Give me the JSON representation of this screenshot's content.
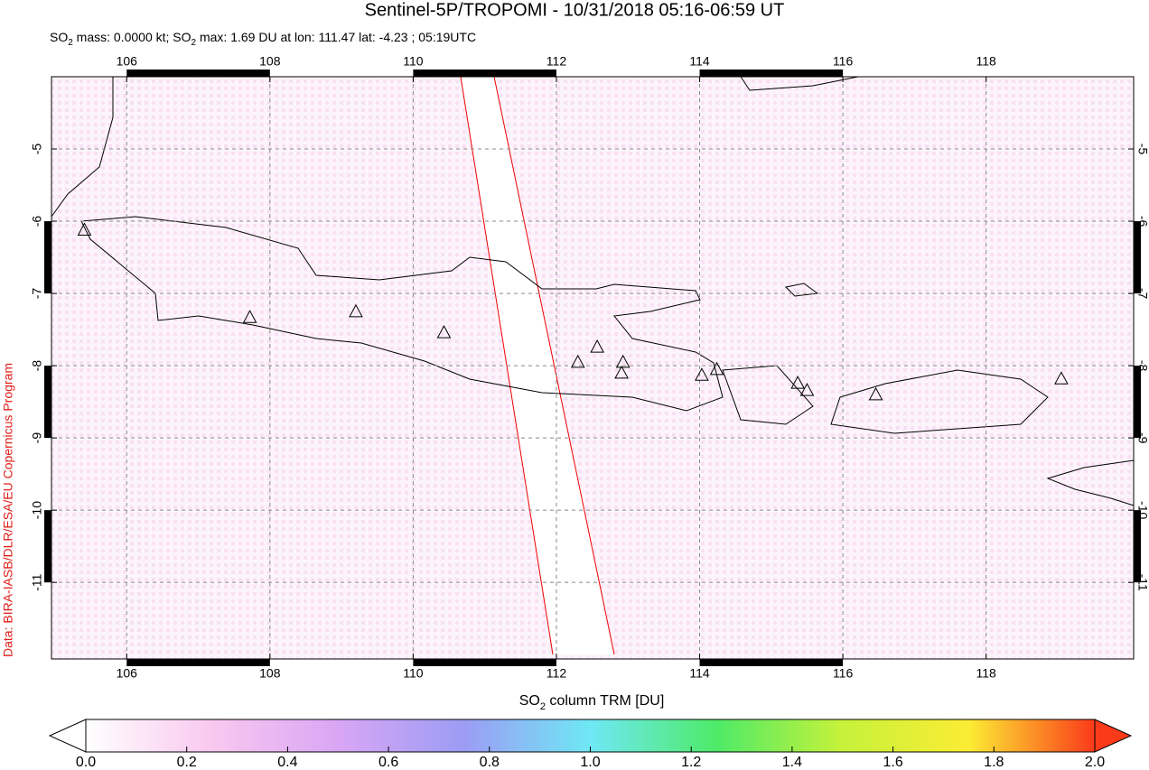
{
  "chart_data": {
    "type": "map",
    "title": "Sentinel-5P/TROPOMI - 10/31/2018 05:16-06:59 UT",
    "subtitle_parts": [
      "SO",
      "2",
      " mass: 0.0000 kt; SO",
      "2",
      " max: 1.69 DU at lon: 111.47 lat: -4.23 ; 05:19UTC"
    ],
    "credit": "Data: BIRA-IASB/DLR/ESA/EU Copernicus Program",
    "xlim": [
      104.95,
      120.06
    ],
    "ylim": [
      -12.06,
      -4.0
    ],
    "xticks": [
      106,
      108,
      110,
      112,
      114,
      116,
      118
    ],
    "yticks": [
      -5,
      -6,
      -7,
      -8,
      -9,
      -10,
      -11
    ],
    "grid": true,
    "volcanoes": {
      "x": [
        105.41,
        107.72,
        109.2,
        110.43,
        112.3,
        112.57,
        112.93,
        112.91,
        114.03,
        114.24,
        115.37,
        115.5,
        116.46,
        119.05
      ],
      "y": [
        -6.13,
        -7.34,
        -7.26,
        -7.55,
        -7.96,
        -7.75,
        -7.96,
        -8.11,
        -8.14,
        -8.06,
        -8.25,
        -8.35,
        -8.41,
        -8.19
      ]
    },
    "colorbar": {
      "label_parts": [
        "SO",
        "2",
        " column TRM [DU]"
      ],
      "lim": [
        0,
        2
      ],
      "ticks": [
        {
          "value": 0,
          "label": "0.0"
        },
        {
          "value": 0.2,
          "label": "0.2"
        },
        {
          "value": 0.4,
          "label": "0.4"
        },
        {
          "value": 0.6,
          "label": "0.6"
        },
        {
          "value": 0.8,
          "label": "0.8"
        },
        {
          "value": 1.0,
          "label": "1.0"
        },
        {
          "value": 1.2,
          "label": "1.2"
        },
        {
          "value": 1.4,
          "label": "1.4"
        },
        {
          "value": 1.6,
          "label": "1.6"
        },
        {
          "value": 1.8,
          "label": "1.8"
        },
        {
          "value": 2.0,
          "label": "2.0"
        }
      ],
      "colors": [
        "#ffffff",
        "#f9c8ef",
        "#d9a6f5",
        "#9c9cf4",
        "#6fe8f5",
        "#4eea68",
        "#c6f23a",
        "#fcec34",
        "#fb3a1a"
      ]
    }
  }
}
